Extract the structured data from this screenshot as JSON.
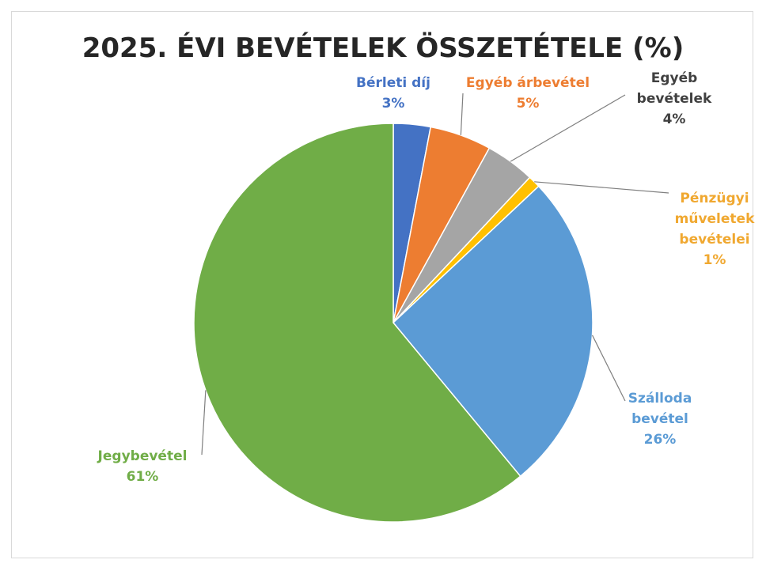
{
  "chart_data": {
    "type": "pie",
    "title": "2025. ÉVI BEVÉTELEK ÖSSZETÉTELE (%)",
    "categories": [
      "Bérleti díj",
      "Egyéb árbevétel",
      "Egyéb bevételek",
      "Pénzügyi műveletek bevételei",
      "Szálloda bevétel",
      "Jegybevétel"
    ],
    "values": [
      3,
      5,
      4,
      1,
      26,
      61
    ],
    "value_labels": [
      "3%",
      "5%",
      "4%",
      "1%",
      "26%",
      "61%"
    ],
    "colors": [
      "#4472c4",
      "#ed7d31",
      "#a5a5a5",
      "#ffc000",
      "#5b9bd5",
      "#70ad47"
    ]
  }
}
